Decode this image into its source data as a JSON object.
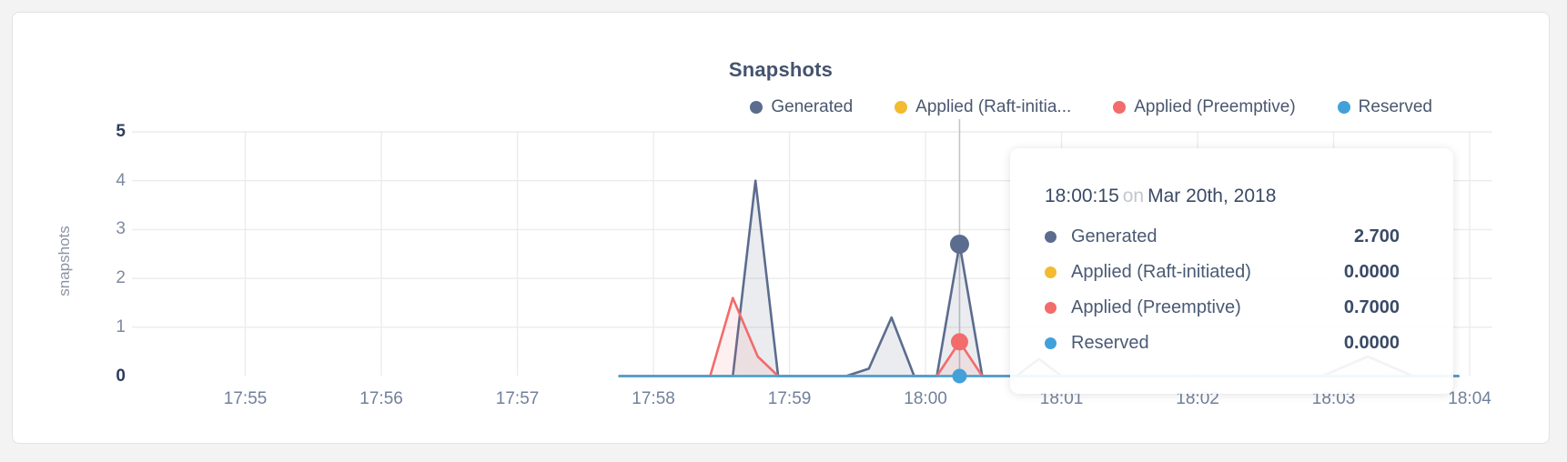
{
  "chart_data": {
    "type": "area",
    "title": "Snapshots",
    "ylabel": "snapshots",
    "xlabel": "",
    "grid": true,
    "legend_position": "top-right",
    "ylim": [
      0,
      5
    ],
    "xlim": [
      "17:54:10",
      "18:04:10"
    ],
    "y_ticks": [
      {
        "value": 5,
        "label": "5",
        "emph": true
      },
      {
        "value": 4,
        "label": "4",
        "emph": false
      },
      {
        "value": 3,
        "label": "3",
        "emph": false
      },
      {
        "value": 2,
        "label": "2",
        "emph": false
      },
      {
        "value": 1,
        "label": "1",
        "emph": false
      },
      {
        "value": 0,
        "label": "0",
        "emph": true
      }
    ],
    "x_ticks": [
      {
        "label": "17:55",
        "time": "17:55:00"
      },
      {
        "label": "17:56",
        "time": "17:56:00"
      },
      {
        "label": "17:57",
        "time": "17:57:00"
      },
      {
        "label": "17:58",
        "time": "17:58:00"
      },
      {
        "label": "17:59",
        "time": "17:59:00"
      },
      {
        "label": "18:00",
        "time": "18:00:00"
      },
      {
        "label": "18:01",
        "time": "18:01:00"
      },
      {
        "label": "18:02",
        "time": "18:02:00"
      },
      {
        "label": "18:03",
        "time": "18:03:00"
      },
      {
        "label": "18:04",
        "time": "18:04:00"
      }
    ],
    "series": [
      {
        "name": "Generated",
        "legend_label": "Generated",
        "color": "#5c6c8e",
        "fill": "rgba(92,108,142,0.13)",
        "points": [
          [
            "17:57:45",
            0
          ],
          [
            "17:58:35",
            0
          ],
          [
            "17:58:45",
            4.0
          ],
          [
            "17:58:55",
            0
          ],
          [
            "17:59:25",
            0
          ],
          [
            "17:59:35",
            0.15
          ],
          [
            "17:59:45",
            1.2
          ],
          [
            "17:59:55",
            0
          ],
          [
            "18:00:05",
            0
          ],
          [
            "18:00:15",
            2.7
          ],
          [
            "18:00:25",
            0
          ],
          [
            "18:00:40",
            0
          ],
          [
            "18:00:50",
            0.35
          ],
          [
            "18:01:00",
            0
          ],
          [
            "18:02:55",
            0
          ],
          [
            "18:03:15",
            0.4
          ],
          [
            "18:03:35",
            0
          ],
          [
            "18:03:55",
            0
          ]
        ]
      },
      {
        "name": "Applied (Raft-initiated)",
        "legend_label": "Applied (Raft-initia...",
        "color": "#f2bb30",
        "fill": null,
        "points": [
          [
            "17:57:45",
            0
          ],
          [
            "18:03:55",
            0
          ]
        ]
      },
      {
        "name": "Applied (Preemptive)",
        "legend_label": "Applied (Preemptive)",
        "color": "#f36b6b",
        "fill": "rgba(243,107,107,0.10)",
        "points": [
          [
            "17:57:45",
            0
          ],
          [
            "17:58:25",
            0
          ],
          [
            "17:58:35",
            1.6
          ],
          [
            "17:58:46",
            0.4
          ],
          [
            "17:58:55",
            0
          ],
          [
            "18:00:05",
            0
          ],
          [
            "18:00:15",
            0.7
          ],
          [
            "18:00:25",
            0
          ],
          [
            "18:03:55",
            0
          ]
        ]
      },
      {
        "name": "Reserved",
        "legend_label": "Reserved",
        "color": "#42a1d9",
        "fill": null,
        "points": [
          [
            "17:57:45",
            0
          ],
          [
            "18:03:55",
            0
          ]
        ]
      }
    ],
    "hover": {
      "time": "18:00:15",
      "line_color": "#c5c5c8",
      "points": [
        {
          "series": "Generated",
          "value": 2.7,
          "r": 10.5
        },
        {
          "series": "Applied (Preemptive)",
          "value": 0.7,
          "r": 9.5
        },
        {
          "series": "Reserved",
          "value": 0,
          "r": 8
        }
      ]
    }
  },
  "tooltip": {
    "time": "18:00:15",
    "separator": "on",
    "date": "Mar 20th, 2018",
    "rows": [
      {
        "label": "Generated",
        "value": "2.700",
        "color": "#5c6c8e"
      },
      {
        "label": "Applied (Raft-initiated)",
        "value": "0.0000",
        "color": "#f2bb30"
      },
      {
        "label": "Applied (Preemptive)",
        "value": "0.7000",
        "color": "#f36b6b"
      },
      {
        "label": "Reserved",
        "value": "0.0000",
        "color": "#42a1d9"
      }
    ]
  }
}
